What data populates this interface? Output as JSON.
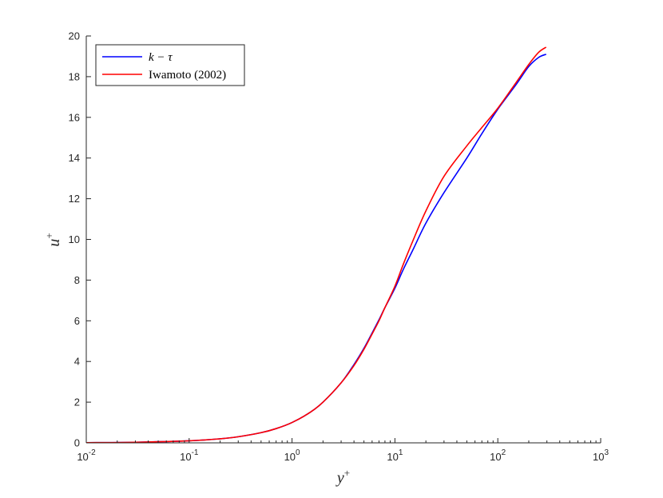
{
  "chart_data": {
    "type": "line",
    "title": "",
    "xlabel": "y",
    "xlabel_sup": "+",
    "ylabel": "u",
    "ylabel_sup": "+",
    "xscale": "log",
    "xlim": [
      0.01,
      1000
    ],
    "ylim": [
      0,
      20
    ],
    "grid": false,
    "legend_position": "top-left",
    "x_ticks": [
      {
        "base": "10",
        "exp": "-2",
        "value": 0.01
      },
      {
        "base": "10",
        "exp": "-1",
        "value": 0.1
      },
      {
        "base": "10",
        "exp": "0",
        "value": 1
      },
      {
        "base": "10",
        "exp": "1",
        "value": 10
      },
      {
        "base": "10",
        "exp": "2",
        "value": 100
      },
      {
        "base": "10",
        "exp": "3",
        "value": 1000
      }
    ],
    "y_ticks": [
      "0",
      "2",
      "4",
      "6",
      "8",
      "10",
      "12",
      "14",
      "16",
      "18",
      "20"
    ],
    "series": [
      {
        "name": "k − τ",
        "color": "#0000ff",
        "points": [
          [
            0.01,
            0.01
          ],
          [
            0.03,
            0.03
          ],
          [
            0.1,
            0.1
          ],
          [
            0.2,
            0.2
          ],
          [
            0.3,
            0.3
          ],
          [
            0.5,
            0.5
          ],
          [
            0.7,
            0.7
          ],
          [
            1,
            1.0
          ],
          [
            1.5,
            1.5
          ],
          [
            2,
            2.0
          ],
          [
            3,
            2.95
          ],
          [
            4,
            3.85
          ],
          [
            5,
            4.65
          ],
          [
            6,
            5.4
          ],
          [
            7,
            6.05
          ],
          [
            8,
            6.65
          ],
          [
            10,
            7.6
          ],
          [
            12,
            8.5
          ],
          [
            15,
            9.5
          ],
          [
            20,
            10.8
          ],
          [
            30,
            12.3
          ],
          [
            50,
            14.0
          ],
          [
            70,
            15.2
          ],
          [
            100,
            16.4
          ],
          [
            150,
            17.6
          ],
          [
            200,
            18.5
          ],
          [
            250,
            18.95
          ],
          [
            295,
            19.1
          ]
        ]
      },
      {
        "name": "Iwamoto (2002)",
        "color": "#ff0000",
        "points": [
          [
            0.01,
            0.01
          ],
          [
            0.03,
            0.03
          ],
          [
            0.1,
            0.1
          ],
          [
            0.2,
            0.2
          ],
          [
            0.3,
            0.3
          ],
          [
            0.5,
            0.5
          ],
          [
            0.7,
            0.7
          ],
          [
            1,
            1.0
          ],
          [
            1.5,
            1.5
          ],
          [
            2,
            2.0
          ],
          [
            3,
            2.95
          ],
          [
            4,
            3.8
          ],
          [
            5,
            4.6
          ],
          [
            6,
            5.35
          ],
          [
            7,
            6.0
          ],
          [
            8,
            6.65
          ],
          [
            10,
            7.7
          ],
          [
            12,
            8.75
          ],
          [
            15,
            9.95
          ],
          [
            20,
            11.4
          ],
          [
            30,
            13.1
          ],
          [
            50,
            14.6
          ],
          [
            70,
            15.5
          ],
          [
            100,
            16.45
          ],
          [
            150,
            17.7
          ],
          [
            200,
            18.6
          ],
          [
            250,
            19.2
          ],
          [
            295,
            19.45
          ]
        ]
      }
    ]
  }
}
